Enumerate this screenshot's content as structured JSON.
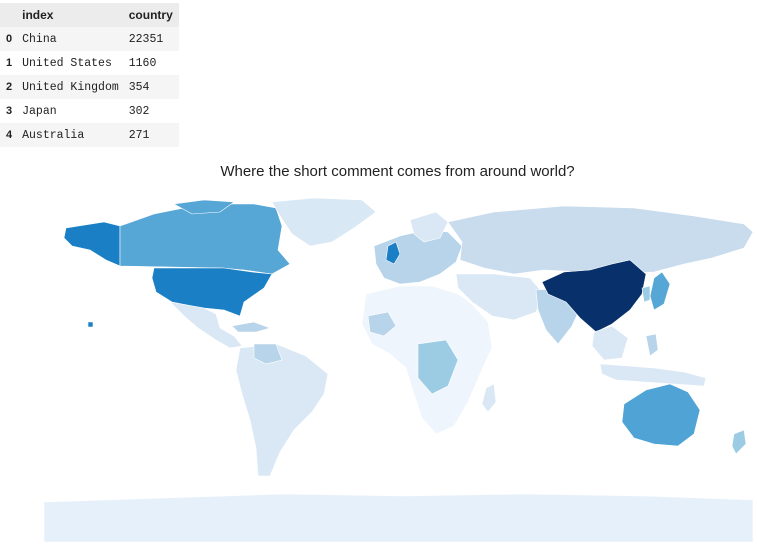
{
  "table": {
    "columns": [
      "index",
      "country"
    ],
    "rows": [
      {
        "index": "0",
        "name": "China",
        "count": "22351"
      },
      {
        "index": "1",
        "name": "United States",
        "count": "1160"
      },
      {
        "index": "2",
        "name": "United Kingdom",
        "count": "354"
      },
      {
        "index": "3",
        "name": "Japan",
        "count": "302"
      },
      {
        "index": "4",
        "name": "Australia",
        "count": "271"
      }
    ]
  },
  "map": {
    "title": "Where the short comment comes from around world?",
    "colorscale": [
      "#f7fbff",
      "#deebf7",
      "#c6dbef",
      "#9ecae1",
      "#6baed6",
      "#4292c6",
      "#2171b5",
      "#08306b"
    ],
    "colors": {
      "china": "#08306b",
      "united_states": "#1a7fc4",
      "alaska": "#1a7fc4",
      "canada": "#56a6d6",
      "australia": "#4fa3d5",
      "russia": "#c8dcee",
      "greenland": "#d9e8f5",
      "antarctica": "#e6f0fa",
      "default_land": "#dae8f5",
      "light_land": "#eef5fc",
      "medium_land": "#b7d4ea",
      "accent_land": "#9ccbe4"
    }
  }
}
